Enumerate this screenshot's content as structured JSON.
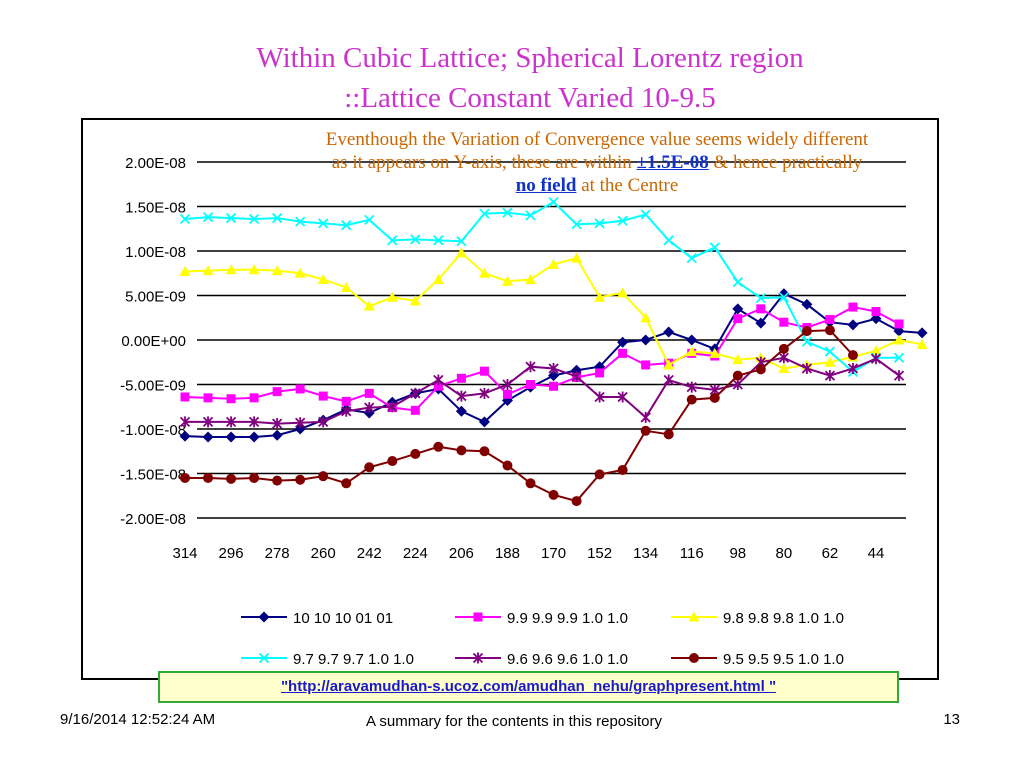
{
  "slide": {
    "title_line1": "Within Cubic Lattice; Spherical Lorentz region",
    "title_line2": "::Lattice Constant Varied 10-9.5",
    "annotation": {
      "text_before": "Eventhough the Variation of Convergence value seems widely different as it appears on Y-axis, these are within ",
      "highlight1": "±1.5E-08",
      "text_middle": " & hence practically ",
      "highlight2": "no field",
      "text_after": " at the Centre"
    },
    "url": "\"http://aravamudhan-s.ucoz.com/amudhan_nehu/graphpresent.html \"",
    "footer_date": "9/16/2014 12:52:24 AM",
    "footer_summary": "A summary for the contents in this repository",
    "page_number": "13"
  },
  "chart_data": {
    "type": "line",
    "title": "",
    "xlabel": "",
    "ylabel": "",
    "x": [
      314,
      311,
      308,
      305,
      302,
      299,
      296,
      293,
      290,
      287,
      284,
      281,
      278,
      275,
      272,
      269,
      266,
      263,
      260,
      257,
      254,
      251,
      248,
      245,
      242,
      239,
      236,
      233,
      230,
      227,
      224,
      221,
      218,
      215,
      212,
      209,
      206,
      203,
      200,
      197,
      194,
      191,
      188,
      185,
      182,
      179,
      176,
      173,
      170,
      167,
      164,
      161,
      158,
      155,
      152,
      149,
      146,
      143,
      140,
      137,
      134,
      131,
      128,
      125,
      122,
      119,
      116,
      113,
      110,
      107,
      104,
      101,
      98,
      95,
      92,
      89,
      86,
      83,
      80,
      77,
      74,
      71,
      68,
      65,
      62,
      59,
      56,
      53,
      50,
      47,
      44,
      41,
      38,
      35,
      32,
      29,
      26
    ],
    "x_tick_labels": [
      "314",
      "296",
      "278",
      "260",
      "242",
      "224",
      "206",
      "188",
      "170",
      "152",
      "134",
      "116",
      "98",
      "80",
      "62",
      "44"
    ],
    "y_tick_labels": [
      "2.00E-08",
      "1.50E-08",
      "1.00E-08",
      "5.00E-09",
      "0.00E+00",
      "-5.00E-09",
      "-1.00E-08",
      "-1.50E-08",
      "-2.00E-08"
    ],
    "ylim": [
      -2e-08,
      2e-08
    ],
    "grid": true,
    "legend_position": "bottom",
    "series": [
      {
        "name": "10 10 10 01 01",
        "color": "#000080",
        "marker": "diamond",
        "points": [
          [
            314,
            -1.08e-08
          ],
          [
            305,
            -1.09e-08
          ],
          [
            296,
            -1.09e-08
          ],
          [
            287,
            -1.09e-08
          ],
          [
            278,
            -1.07e-08
          ],
          [
            269,
            -1e-08
          ],
          [
            260,
            -9e-09
          ],
          [
            251,
            -7.8e-09
          ],
          [
            242,
            -8.2e-09
          ],
          [
            233,
            -7e-09
          ],
          [
            224,
            -6e-09
          ],
          [
            215,
            -5.5e-09
          ],
          [
            206,
            -8e-09
          ],
          [
            197,
            -9.2e-09
          ],
          [
            188,
            -6.8e-09
          ],
          [
            179,
            -5.3e-09
          ],
          [
            170,
            -4e-09
          ],
          [
            161,
            -3.4e-09
          ],
          [
            152,
            -3e-09
          ],
          [
            143,
            -2.5e-10
          ],
          [
            134,
            0
          ],
          [
            125,
            9e-10
          ],
          [
            116,
            0
          ],
          [
            107,
            -1e-09
          ],
          [
            98,
            3.5e-09
          ],
          [
            89,
            1.9e-09
          ],
          [
            80,
            5.2e-09
          ],
          [
            71,
            4e-09
          ],
          [
            62,
            2e-09
          ],
          [
            53,
            1.7e-09
          ],
          [
            44,
            2.4e-09
          ],
          [
            35,
            1e-09
          ],
          [
            26,
            8e-10
          ]
        ]
      },
      {
        "name": "9.9 9.9 9.9 1.0 1.0",
        "color": "#ff00ff",
        "marker": "square",
        "points": [
          [
            314,
            -6.4e-09
          ],
          [
            305,
            -6.5e-09
          ],
          [
            296,
            -6.6e-09
          ],
          [
            287,
            -6.5e-09
          ],
          [
            278,
            -5.8e-09
          ],
          [
            269,
            -5.5e-09
          ],
          [
            260,
            -6.3e-09
          ],
          [
            251,
            -6.9e-09
          ],
          [
            242,
            -6e-09
          ],
          [
            233,
            -7.6e-09
          ],
          [
            224,
            -7.9e-09
          ],
          [
            215,
            -5.2e-09
          ],
          [
            206,
            -4.3e-09
          ],
          [
            197,
            -3.5e-09
          ],
          [
            188,
            -6.1e-09
          ],
          [
            179,
            -5e-09
          ],
          [
            170,
            -5.2e-09
          ],
          [
            161,
            -4.2e-09
          ],
          [
            152,
            -3.7e-09
          ],
          [
            143,
            -1.5e-09
          ],
          [
            134,
            -2.8e-09
          ],
          [
            125,
            -2.6e-09
          ],
          [
            116,
            -1.5e-09
          ],
          [
            107,
            -1.8e-09
          ],
          [
            98,
            2.4e-09
          ],
          [
            89,
            3.5e-09
          ],
          [
            80,
            2e-09
          ],
          [
            71,
            1.4e-09
          ],
          [
            62,
            2.3e-09
          ],
          [
            53,
            3.7e-09
          ],
          [
            44,
            3.2e-09
          ],
          [
            35,
            1.8e-09
          ]
        ]
      },
      {
        "name": "9.8 9.8 9.8 1.0 1.0",
        "color": "#ffff00",
        "marker": "triangle",
        "points": [
          [
            314,
            7.7e-09
          ],
          [
            305,
            7.8e-09
          ],
          [
            296,
            7.9e-09
          ],
          [
            287,
            7.9e-09
          ],
          [
            278,
            7.8e-09
          ],
          [
            269,
            7.5e-09
          ],
          [
            260,
            6.8e-09
          ],
          [
            251,
            5.9e-09
          ],
          [
            242,
            3.8e-09
          ],
          [
            233,
            4.8e-09
          ],
          [
            224,
            4.4e-09
          ],
          [
            215,
            6.8e-09
          ],
          [
            206,
            9.8e-09
          ],
          [
            197,
            7.5e-09
          ],
          [
            188,
            6.6e-09
          ],
          [
            179,
            6.8e-09
          ],
          [
            170,
            8.5e-09
          ],
          [
            161,
            9.2e-09
          ],
          [
            152,
            4.8e-09
          ],
          [
            143,
            5.3e-09
          ],
          [
            134,
            2.5e-09
          ],
          [
            125,
            -2.8e-09
          ],
          [
            116,
            -1.3e-09
          ],
          [
            107,
            -1.5e-09
          ],
          [
            98,
            -2.2e-09
          ],
          [
            89,
            -2e-09
          ],
          [
            80,
            -3.2e-09
          ],
          [
            71,
            -2.8e-09
          ],
          [
            62,
            -2.5e-09
          ],
          [
            53,
            -1.9e-09
          ],
          [
            44,
            -1.2e-09
          ],
          [
            35,
            0
          ],
          [
            26,
            -5e-10
          ]
        ]
      },
      {
        "name": "9.7 9.7 9.7 1.0 1.0",
        "color": "#00ffff",
        "marker": "x",
        "points": [
          [
            314,
            1.36e-08
          ],
          [
            305,
            1.38e-08
          ],
          [
            296,
            1.37e-08
          ],
          [
            287,
            1.36e-08
          ],
          [
            278,
            1.37e-08
          ],
          [
            269,
            1.33e-08
          ],
          [
            260,
            1.31e-08
          ],
          [
            251,
            1.29e-08
          ],
          [
            242,
            1.35e-08
          ],
          [
            233,
            1.12e-08
          ],
          [
            224,
            1.13e-08
          ],
          [
            215,
            1.12e-08
          ],
          [
            206,
            1.11e-08
          ],
          [
            197,
            1.42e-08
          ],
          [
            188,
            1.43e-08
          ],
          [
            179,
            1.4e-08
          ],
          [
            170,
            1.55e-08
          ],
          [
            161,
            1.3e-08
          ],
          [
            152,
            1.31e-08
          ],
          [
            143,
            1.34e-08
          ],
          [
            134,
            1.41e-08
          ],
          [
            125,
            1.12e-08
          ],
          [
            116,
            9.2e-09
          ],
          [
            107,
            1.04e-08
          ],
          [
            98,
            6.5e-09
          ],
          [
            89,
            4.7e-09
          ],
          [
            80,
            4.8e-09
          ],
          [
            71,
            -2e-10
          ],
          [
            62,
            -1.3e-09
          ],
          [
            53,
            -3.6e-09
          ],
          [
            44,
            -2e-09
          ],
          [
            35,
            -2e-09
          ]
        ]
      },
      {
        "name": "9.6 9.6 9.6 1.0 1.0",
        "color": "#800080",
        "marker": "star",
        "points": [
          [
            314,
            -9.2e-09
          ],
          [
            305,
            -9.2e-09
          ],
          [
            296,
            -9.2e-09
          ],
          [
            287,
            -9.2e-09
          ],
          [
            278,
            -9.4e-09
          ],
          [
            269,
            -9.3e-09
          ],
          [
            260,
            -9.2e-09
          ],
          [
            251,
            -8e-09
          ],
          [
            242,
            -7.6e-09
          ],
          [
            233,
            -7.5e-09
          ],
          [
            224,
            -6e-09
          ],
          [
            215,
            -4.5e-09
          ],
          [
            206,
            -6.3e-09
          ],
          [
            197,
            -6e-09
          ],
          [
            188,
            -5e-09
          ],
          [
            179,
            -3e-09
          ],
          [
            170,
            -3.2e-09
          ],
          [
            161,
            -4.1e-09
          ],
          [
            152,
            -6.4e-09
          ],
          [
            143,
            -6.4e-09
          ],
          [
            134,
            -8.7e-09
          ],
          [
            125,
            -4.5e-09
          ],
          [
            116,
            -5.3e-09
          ],
          [
            107,
            -5.6e-09
          ],
          [
            98,
            -5e-09
          ],
          [
            89,
            -2.5e-09
          ],
          [
            80,
            -2e-09
          ],
          [
            71,
            -3.2e-09
          ],
          [
            62,
            -4e-09
          ],
          [
            53,
            -3.2e-09
          ],
          [
            44,
            -2.1e-09
          ],
          [
            35,
            -4e-09
          ]
        ]
      },
      {
        "name": "9.5 9.5 9.5 1.0 1.0",
        "color": "#800000",
        "marker": "circle",
        "points": [
          [
            314,
            -1.55e-08
          ],
          [
            305,
            -1.55e-08
          ],
          [
            296,
            -1.56e-08
          ],
          [
            287,
            -1.55e-08
          ],
          [
            278,
            -1.58e-08
          ],
          [
            269,
            -1.57e-08
          ],
          [
            260,
            -1.53e-08
          ],
          [
            251,
            -1.61e-08
          ],
          [
            242,
            -1.43e-08
          ],
          [
            233,
            -1.36e-08
          ],
          [
            224,
            -1.28e-08
          ],
          [
            215,
            -1.2e-08
          ],
          [
            206,
            -1.24e-08
          ],
          [
            197,
            -1.25e-08
          ],
          [
            188,
            -1.41e-08
          ],
          [
            179,
            -1.61e-08
          ],
          [
            170,
            -1.74e-08
          ],
          [
            161,
            -1.81e-08
          ],
          [
            152,
            -1.51e-08
          ],
          [
            143,
            -1.46e-08
          ],
          [
            134,
            -1.02e-08
          ],
          [
            125,
            -1.06e-08
          ],
          [
            116,
            -6.7e-09
          ],
          [
            107,
            -6.5e-09
          ],
          [
            98,
            -4e-09
          ],
          [
            89,
            -3.3e-09
          ],
          [
            80,
            -1e-09
          ],
          [
            71,
            1e-09
          ],
          [
            62,
            1.1e-09
          ],
          [
            53,
            -1.7e-09
          ]
        ]
      }
    ]
  }
}
